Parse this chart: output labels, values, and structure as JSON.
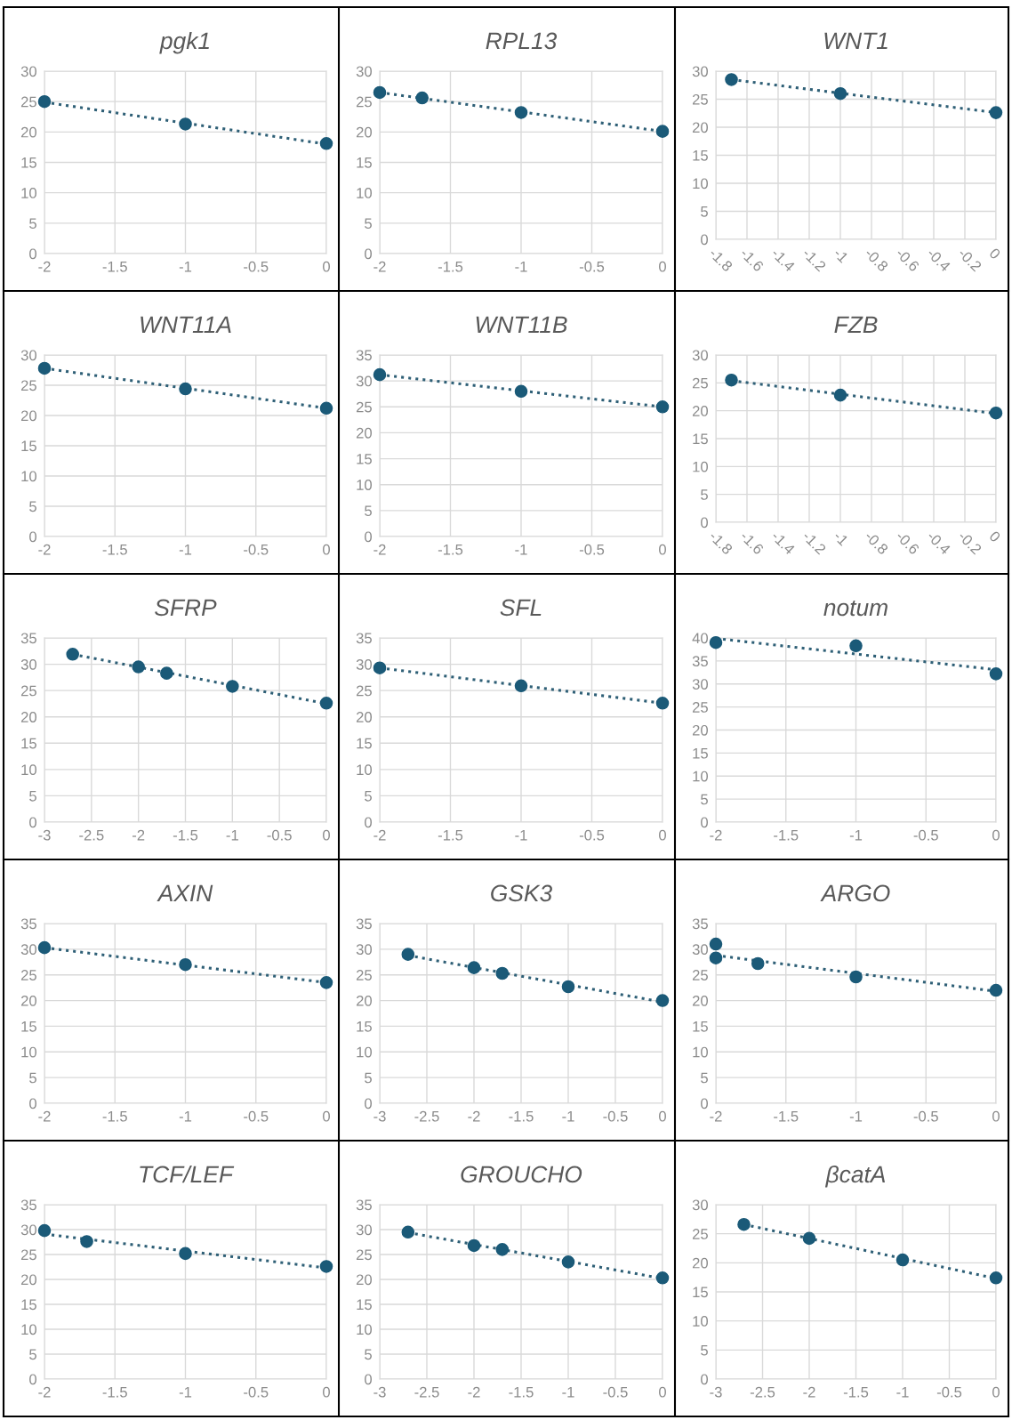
{
  "chart_data": [
    {
      "type": "scatter",
      "title": "pgk1",
      "xlim": [
        -2,
        0
      ],
      "xticks": [
        -2,
        -1.5,
        -1,
        -0.5,
        0
      ],
      "ylim": [
        0,
        30
      ],
      "yticks": [
        0,
        5,
        10,
        15,
        20,
        25,
        30
      ],
      "grid": true,
      "series": [
        {
          "type": "scatter",
          "x": [
            -2,
            -1,
            0
          ],
          "values": [
            25,
            21.3,
            18.1
          ],
          "color": "#1b5a78",
          "marker": "circle"
        },
        {
          "type": "line",
          "x": [
            -2,
            0
          ],
          "values": [
            24.9,
            18.0
          ],
          "color": "#2e5f76",
          "line_style": "dotted"
        }
      ]
    },
    {
      "type": "scatter",
      "title": "RPL13",
      "xlim": [
        -2,
        0
      ],
      "xticks": [
        -2,
        -1.5,
        -1,
        -0.5,
        0
      ],
      "ylim": [
        0,
        30
      ],
      "yticks": [
        0,
        5,
        10,
        15,
        20,
        25,
        30
      ],
      "grid": true,
      "series": [
        {
          "type": "scatter",
          "x": [
            -2,
            -1.7,
            -1,
            0
          ],
          "values": [
            26.5,
            25.6,
            23.2,
            20.1
          ],
          "color": "#1b5a78",
          "marker": "circle"
        },
        {
          "type": "line",
          "x": [
            -2,
            0
          ],
          "values": [
            26.5,
            20.1
          ],
          "color": "#2e5f76",
          "line_style": "dotted"
        }
      ]
    },
    {
      "type": "scatter",
      "title": "WNT1",
      "xlim": [
        -1.8,
        0
      ],
      "xticks": [
        -1.8,
        -1.6,
        -1.4,
        -1.2,
        -1,
        -0.8,
        -0.6,
        -0.4,
        -0.2,
        0
      ],
      "ylim": [
        0,
        30
      ],
      "yticks": [
        0,
        5,
        10,
        15,
        20,
        25,
        30
      ],
      "grid": true,
      "series": [
        {
          "type": "scatter",
          "x": [
            -1.7,
            -1,
            0
          ],
          "values": [
            28.5,
            26,
            22.6
          ],
          "color": "#1b5a78",
          "marker": "circle"
        },
        {
          "type": "line",
          "x": [
            -1.7,
            0
          ],
          "values": [
            28.5,
            22.6
          ],
          "color": "#2e5f76",
          "line_style": "dotted"
        }
      ]
    },
    {
      "type": "scatter",
      "title": "WNT11A",
      "xlim": [
        -2,
        0
      ],
      "xticks": [
        -2,
        -1.5,
        -1,
        -0.5,
        0
      ],
      "ylim": [
        0,
        30
      ],
      "yticks": [
        0,
        5,
        10,
        15,
        20,
        25,
        30
      ],
      "grid": true,
      "series": [
        {
          "type": "scatter",
          "x": [
            -2,
            -1,
            0
          ],
          "values": [
            27.8,
            24.4,
            21.2
          ],
          "color": "#1b5a78",
          "marker": "circle"
        },
        {
          "type": "line",
          "x": [
            -2,
            0
          ],
          "values": [
            27.8,
            21.2
          ],
          "color": "#2e5f76",
          "line_style": "dotted"
        }
      ]
    },
    {
      "type": "scatter",
      "title": "WNT11B",
      "xlim": [
        -2,
        0
      ],
      "xticks": [
        -2,
        -1.5,
        -1,
        -0.5,
        0
      ],
      "ylim": [
        0,
        35
      ],
      "yticks": [
        0,
        5,
        10,
        15,
        20,
        25,
        30,
        35
      ],
      "grid": true,
      "series": [
        {
          "type": "scatter",
          "x": [
            -2,
            -1,
            0
          ],
          "values": [
            31.2,
            28,
            25
          ],
          "color": "#1b5a78",
          "marker": "circle"
        },
        {
          "type": "line",
          "x": [
            -2,
            0
          ],
          "values": [
            31.2,
            25.0
          ],
          "color": "#2e5f76",
          "line_style": "dotted"
        }
      ]
    },
    {
      "type": "scatter",
      "title": "FZB",
      "xlim": [
        -1.8,
        0
      ],
      "xticks": [
        -1.8,
        -1.6,
        -1.4,
        -1.2,
        -1,
        -0.8,
        -0.6,
        -0.4,
        -0.2,
        0
      ],
      "ylim": [
        0,
        30
      ],
      "yticks": [
        0,
        5,
        10,
        15,
        20,
        25,
        30
      ],
      "grid": true,
      "series": [
        {
          "type": "scatter",
          "x": [
            -1.7,
            -1,
            0
          ],
          "values": [
            25.5,
            22.8,
            19.6
          ],
          "color": "#1b5a78",
          "marker": "circle"
        },
        {
          "type": "line",
          "x": [
            -1.7,
            0
          ],
          "values": [
            25.4,
            19.5
          ],
          "color": "#2e5f76",
          "line_style": "dotted"
        }
      ]
    },
    {
      "type": "scatter",
      "title": "SFRP",
      "xlim": [
        -3,
        0
      ],
      "xticks": [
        -3,
        -2.5,
        -2,
        -1.5,
        -1,
        -0.5,
        0
      ],
      "ylim": [
        0,
        35
      ],
      "yticks": [
        0,
        5,
        10,
        15,
        20,
        25,
        30,
        35
      ],
      "grid": true,
      "series": [
        {
          "type": "scatter",
          "x": [
            -2.7,
            -2,
            -1.7,
            -1,
            0
          ],
          "values": [
            31.9,
            29.5,
            28.3,
            25.8,
            22.6
          ],
          "color": "#1b5a78",
          "marker": "circle"
        },
        {
          "type": "line",
          "x": [
            -2.7,
            0
          ],
          "values": [
            31.9,
            22.5
          ],
          "color": "#2e5f76",
          "line_style": "dotted"
        }
      ]
    },
    {
      "type": "scatter",
      "title": "SFL",
      "xlim": [
        -2,
        0
      ],
      "xticks": [
        -2,
        -1.5,
        -1,
        -0.5,
        0
      ],
      "ylim": [
        0,
        35
      ],
      "yticks": [
        0,
        5,
        10,
        15,
        20,
        25,
        30,
        35
      ],
      "grid": true,
      "series": [
        {
          "type": "scatter",
          "x": [
            -2,
            -1,
            0
          ],
          "values": [
            29.3,
            25.9,
            22.6
          ],
          "color": "#1b5a78",
          "marker": "circle"
        },
        {
          "type": "line",
          "x": [
            -2,
            0
          ],
          "values": [
            29.3,
            22.6
          ],
          "color": "#2e5f76",
          "line_style": "dotted"
        }
      ]
    },
    {
      "type": "scatter",
      "title": "notum",
      "xlim": [
        -2,
        0
      ],
      "xticks": [
        -2,
        -1.5,
        -1,
        -0.5,
        0
      ],
      "ylim": [
        0,
        40
      ],
      "yticks": [
        0,
        5,
        10,
        15,
        20,
        25,
        30,
        35,
        40
      ],
      "grid": true,
      "series": [
        {
          "type": "scatter",
          "x": [
            -2,
            -1,
            0
          ],
          "values": [
            39,
            38.3,
            32.2
          ],
          "color": "#1b5a78",
          "marker": "circle"
        },
        {
          "type": "line",
          "x": [
            -2,
            0
          ],
          "values": [
            39.9,
            33.1
          ],
          "color": "#2e5f76",
          "line_style": "dotted"
        }
      ]
    },
    {
      "type": "scatter",
      "title": "AXIN",
      "xlim": [
        -2,
        0
      ],
      "xticks": [
        -2,
        -1.5,
        -1,
        -0.5,
        0
      ],
      "ylim": [
        0,
        35
      ],
      "yticks": [
        0,
        5,
        10,
        15,
        20,
        25,
        30,
        35
      ],
      "grid": true,
      "series": [
        {
          "type": "scatter",
          "x": [
            -2,
            -1,
            0
          ],
          "values": [
            30.3,
            27,
            23.5
          ],
          "color": "#1b5a78",
          "marker": "circle"
        },
        {
          "type": "line",
          "x": [
            -2,
            0
          ],
          "values": [
            30.3,
            23.5
          ],
          "color": "#2e5f76",
          "line_style": "dotted"
        }
      ]
    },
    {
      "type": "scatter",
      "title": "GSK3",
      "xlim": [
        -3,
        0
      ],
      "xticks": [
        -3,
        -2.5,
        -2,
        -1.5,
        -1,
        -0.5,
        0
      ],
      "ylim": [
        0,
        35
      ],
      "yticks": [
        0,
        5,
        10,
        15,
        20,
        25,
        30,
        35
      ],
      "grid": true,
      "series": [
        {
          "type": "scatter",
          "x": [
            -2.7,
            -2,
            -1.7,
            -1,
            0
          ],
          "values": [
            29,
            26.4,
            25.3,
            22.7,
            20
          ],
          "color": "#1b5a78",
          "marker": "circle"
        },
        {
          "type": "line",
          "x": [
            -2.7,
            0
          ],
          "values": [
            28.8,
            19.7
          ],
          "color": "#2e5f76",
          "line_style": "dotted"
        }
      ]
    },
    {
      "type": "scatter",
      "title": "ARGO",
      "xlim": [
        -2,
        0
      ],
      "xticks": [
        -2,
        -1.5,
        -1,
        -0.5,
        0
      ],
      "ylim": [
        0,
        35
      ],
      "yticks": [
        0,
        5,
        10,
        15,
        20,
        25,
        30,
        35
      ],
      "grid": true,
      "series": [
        {
          "type": "scatter",
          "x": [
            -2,
            -2,
            -1.7,
            -1,
            0
          ],
          "values": [
            31,
            28.3,
            27.2,
            24.6,
            22
          ],
          "color": "#1b5a78",
          "marker": "circle"
        },
        {
          "type": "line",
          "x": [
            -2,
            0
          ],
          "values": [
            28.8,
            21.8
          ],
          "color": "#2e5f76",
          "line_style": "dotted"
        }
      ]
    },
    {
      "type": "scatter",
      "title": "TCF/LEF",
      "xlim": [
        -2,
        0
      ],
      "xticks": [
        -2,
        -1.5,
        -1,
        -0.5,
        0
      ],
      "ylim": [
        0,
        35
      ],
      "yticks": [
        0,
        5,
        10,
        15,
        20,
        25,
        30,
        35
      ],
      "grid": true,
      "series": [
        {
          "type": "scatter",
          "x": [
            -2,
            -1.7,
            -1,
            0
          ],
          "values": [
            29.8,
            27.6,
            25.2,
            22.6
          ],
          "color": "#1b5a78",
          "marker": "circle"
        },
        {
          "type": "line",
          "x": [
            -2,
            0
          ],
          "values": [
            29.1,
            22.3
          ],
          "color": "#2e5f76",
          "line_style": "dotted"
        }
      ]
    },
    {
      "type": "scatter",
      "title": "GROUCHO",
      "xlim": [
        -3,
        0
      ],
      "xticks": [
        -3,
        -2.5,
        -2,
        -1.5,
        -1,
        -0.5,
        0
      ],
      "ylim": [
        0,
        35
      ],
      "yticks": [
        0,
        5,
        10,
        15,
        20,
        25,
        30,
        35
      ],
      "grid": true,
      "series": [
        {
          "type": "scatter",
          "x": [
            -2.7,
            -2,
            -1.7,
            -1,
            0
          ],
          "values": [
            29.5,
            26.8,
            26,
            23.5,
            20.3
          ],
          "color": "#1b5a78",
          "marker": "circle"
        },
        {
          "type": "line",
          "x": [
            -2.7,
            0
          ],
          "values": [
            29.4,
            20.2
          ],
          "color": "#2e5f76",
          "line_style": "dotted"
        }
      ]
    },
    {
      "type": "scatter",
      "title": "βcatA",
      "xlim": [
        -3,
        0
      ],
      "xticks": [
        -3,
        -2.5,
        -2,
        -1.5,
        -1,
        -0.5,
        0
      ],
      "ylim": [
        0,
        30
      ],
      "yticks": [
        0,
        5,
        10,
        15,
        20,
        25,
        30
      ],
      "grid": true,
      "series": [
        {
          "type": "scatter",
          "x": [
            -2.7,
            -2,
            -1,
            0
          ],
          "values": [
            26.6,
            24.2,
            20.5,
            17.4
          ],
          "color": "#1b5a78",
          "marker": "circle"
        },
        {
          "type": "line",
          "x": [
            -2.7,
            0
          ],
          "values": [
            26.6,
            17.3
          ],
          "color": "#2e5f76",
          "line_style": "dotted"
        }
      ]
    }
  ]
}
